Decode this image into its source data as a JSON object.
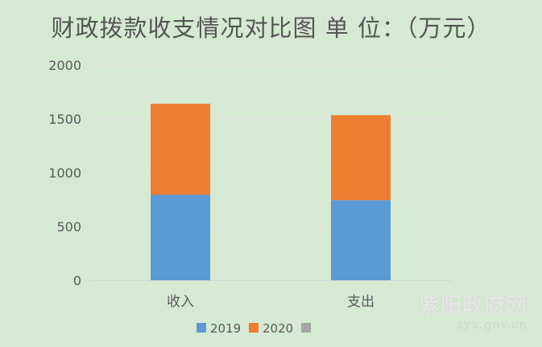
{
  "chart_data": {
    "type": "bar",
    "stacked": true,
    "title": "财政拨款收支情况对比图 单 位：（万元）",
    "categories": [
      "收入",
      "支出"
    ],
    "series": [
      {
        "name": "2019",
        "color": "#5b9bd5",
        "values": [
          795,
          745
        ]
      },
      {
        "name": "2020",
        "color": "#ed7d31",
        "values": [
          845,
          790
        ]
      },
      {
        "name": "",
        "color": "#a5a5a5",
        "values": [
          0,
          0
        ]
      }
    ],
    "ylim": [
      0,
      2000
    ],
    "yticks": [
      0,
      500,
      1000,
      1500,
      2000
    ],
    "grid": true,
    "legend": "bottom"
  },
  "watermark": {
    "name": "紫阳政府网",
    "url": "zyx.gov.cn"
  }
}
